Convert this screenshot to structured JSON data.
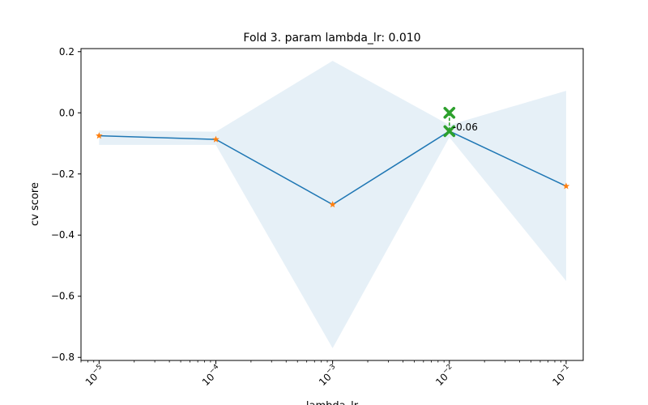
{
  "chart_data": {
    "type": "line",
    "title": "Fold 3. param lambda_lr: 0.010",
    "xlabel": "lambda_lr",
    "ylabel": "cv score",
    "xscale": "log",
    "xlim": [
      7e-06,
      0.14
    ],
    "ylim": [
      -0.81,
      0.21
    ],
    "grid": false,
    "x": [
      1e-05,
      0.0001,
      0.001,
      0.01,
      0.1
    ],
    "xtick_labels": [
      {
        "base": "10",
        "exp": "−5"
      },
      {
        "base": "10",
        "exp": "−4"
      },
      {
        "base": "10",
        "exp": "−3"
      },
      {
        "base": "10",
        "exp": "−2"
      },
      {
        "base": "10",
        "exp": "−1"
      }
    ],
    "yticks": [
      0.2,
      0.0,
      -0.2,
      -0.4,
      -0.6,
      -0.8
    ],
    "ytick_labels": [
      "0.2",
      "0.0",
      "−0.2",
      "−0.4",
      "−0.6",
      "−0.8"
    ],
    "series": [
      {
        "type": "line",
        "color": "#1f77b4",
        "marker_color": "#ff7f0e",
        "marker": "star",
        "values": [
          -0.075,
          -0.087,
          -0.3,
          -0.06,
          -0.24
        ]
      }
    ],
    "band": {
      "color": "#1f77b4",
      "opacity": 0.11,
      "upper": [
        -0.058,
        -0.062,
        0.17,
        -0.04,
        0.072
      ],
      "lower": [
        -0.105,
        -0.105,
        -0.77,
        -0.08,
        -0.55
      ]
    },
    "highlight": {
      "color": "#2ca02c",
      "x": 0.01,
      "y_top": 0.0,
      "y_bottom": -0.06,
      "label": "-0.06"
    }
  }
}
